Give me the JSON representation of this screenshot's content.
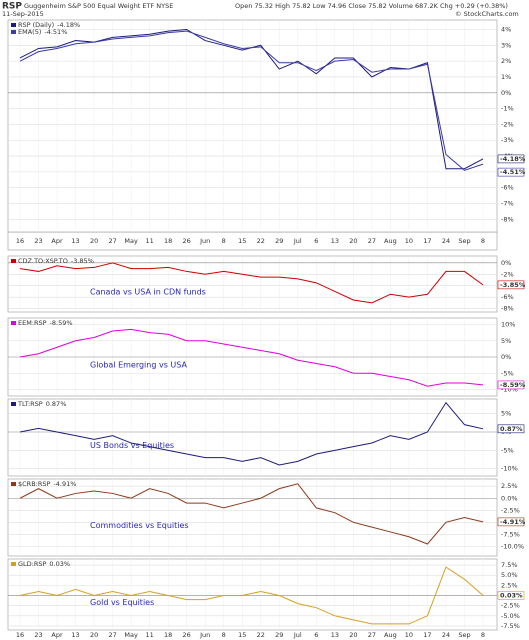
{
  "header": {
    "symbol": "RSP",
    "name": "Guggenheim S&P 500 Equal Weight ETF NYSE",
    "date": "11-Sep-2015",
    "quote": "Open 75.32 High 75.82 Low 74.96 Close 75.82 Volume 687.2K Chg +0.29 (+0.38%)",
    "copyright": "© StockCharts.com"
  },
  "chart_data": [
    {
      "type": "line",
      "categories": [
        "16",
        "23",
        "Apr",
        "13",
        "20",
        "27",
        "May",
        "11",
        "18",
        "26",
        "Jun",
        "8",
        "15",
        "22",
        "29",
        "Jul",
        "6",
        "13",
        "20",
        "27",
        "Aug",
        "10",
        "17",
        "24",
        "Sep",
        "8"
      ],
      "ylim": [
        -8.8,
        4.6
      ],
      "yticks": [
        {
          "value": 4,
          "label": "4%"
        },
        {
          "value": 3,
          "label": "3%"
        },
        {
          "value": 2,
          "label": "2%"
        },
        {
          "value": 1,
          "label": "1%"
        },
        {
          "value": 0,
          "label": "0%"
        },
        {
          "value": -1,
          "label": "-1%"
        },
        {
          "value": -2,
          "label": "-2%"
        },
        {
          "value": -3,
          "label": "-3%"
        },
        {
          "value": -4,
          "label": "-4%"
        },
        {
          "value": -5,
          "label": "-5%"
        },
        {
          "value": -6,
          "label": "-6%"
        },
        {
          "value": -7,
          "label": "-7%"
        },
        {
          "value": -8,
          "label": "-8%"
        }
      ],
      "grid": true,
      "series": [
        {
          "name": "RSP (Daily)",
          "last_label": "-4.18%",
          "color": "#1c1c7a",
          "values": [
            2.2,
            2.8,
            2.9,
            3.3,
            3.2,
            3.5,
            3.6,
            3.7,
            3.9,
            4.0,
            3.3,
            3.0,
            2.7,
            3.0,
            1.5,
            2.0,
            1.2,
            2.2,
            2.2,
            1.0,
            1.6,
            1.5,
            1.9,
            -4.8,
            -4.8,
            -4.18
          ]
        },
        {
          "name": "EMA(5)",
          "last_label": "-4.51%",
          "color": "#3a3aa8",
          "values": [
            2.0,
            2.6,
            2.8,
            3.1,
            3.2,
            3.4,
            3.5,
            3.6,
            3.8,
            3.9,
            3.5,
            3.1,
            2.8,
            2.9,
            1.9,
            1.9,
            1.4,
            2.0,
            2.1,
            1.3,
            1.5,
            1.5,
            1.8,
            -3.9,
            -4.9,
            -4.51
          ]
        }
      ]
    },
    {
      "type": "line",
      "annotation": "Canada vs USA in CDN funds",
      "ylim": [
        -8.6,
        1.2
      ],
      "yticks": [
        {
          "value": 0,
          "label": "0%"
        },
        {
          "value": -2,
          "label": "-2%"
        },
        {
          "value": -4,
          "label": "-4%"
        },
        {
          "value": -6,
          "label": "-6%"
        },
        {
          "value": -8,
          "label": "-8%"
        }
      ],
      "grid": true,
      "series": [
        {
          "name": "CDZ.TO:XSP.TO",
          "last_label": "-3.85%",
          "color": "#cc0000",
          "values": [
            -1,
            -1.5,
            -0.5,
            -1,
            -0.8,
            0,
            -1,
            -1,
            -0.8,
            -1.5,
            -2,
            -1.5,
            -2,
            -2.5,
            -2.5,
            -2.8,
            -3.5,
            -5,
            -6.5,
            -7,
            -5.5,
            -6,
            -5.5,
            -1.5,
            -1.5,
            -3.85
          ]
        }
      ]
    },
    {
      "type": "line",
      "annotation": "Global Emerging vs USA",
      "ylim": [
        -12,
        12
      ],
      "yticks": [
        {
          "value": 10,
          "label": "10%"
        },
        {
          "value": 5,
          "label": "5%"
        },
        {
          "value": 0,
          "label": "0%"
        },
        {
          "value": -5,
          "label": "-5%"
        },
        {
          "value": -10,
          "label": "-10%"
        }
      ],
      "grid": true,
      "series": [
        {
          "name": "EEM:RSP",
          "last_label": "-8.59%",
          "color": "#e000e0",
          "values": [
            0,
            1,
            3,
            5,
            6,
            8,
            8.5,
            7.5,
            7,
            5,
            5,
            4,
            3,
            2,
            1,
            -1,
            -2,
            -3,
            -5,
            -5,
            -6,
            -7,
            -9,
            -8,
            -8,
            -8.59
          ]
        }
      ]
    },
    {
      "type": "line",
      "annotation": "US Bonds vs Equities",
      "ylim": [
        -12,
        9
      ],
      "yticks": [
        {
          "value": 5,
          "label": "5%"
        },
        {
          "value": 0,
          "label": "0%"
        },
        {
          "value": -5,
          "label": "-5%"
        },
        {
          "value": -10,
          "label": "-10%"
        }
      ],
      "grid": true,
      "series": [
        {
          "name": "TLT:RSP",
          "last_label": "0.87%",
          "color": "#1c1c7a",
          "values": [
            0,
            1,
            0,
            -1,
            -2,
            -1,
            -3,
            -4,
            -5,
            -6,
            -7,
            -7,
            -8,
            -7,
            -9,
            -8,
            -6,
            -5,
            -4,
            -3,
            -1,
            -2,
            0,
            8,
            2,
            0.87
          ]
        }
      ]
    },
    {
      "type": "line",
      "annotation": "Commodities vs Equities",
      "ylim": [
        -12,
        4
      ],
      "yticks": [
        {
          "value": 2.5,
          "label": "2.5%"
        },
        {
          "value": 0,
          "label": "0.0%"
        },
        {
          "value": -2.5,
          "label": "-2.5%"
        },
        {
          "value": -5,
          "label": "-5.0%"
        },
        {
          "value": -7.5,
          "label": "-7.5%"
        },
        {
          "value": -10,
          "label": "-10.0%"
        }
      ],
      "grid": true,
      "series": [
        {
          "name": "$CRB:RSP",
          "last_label": "-4.91%",
          "color": "#8b3a1a",
          "values": [
            0,
            2,
            0,
            1,
            1.5,
            1,
            0,
            2,
            1,
            -1,
            -1,
            -2,
            -1,
            0,
            2,
            3,
            -2,
            -3,
            -5,
            -6,
            -7,
            -8,
            -9.5,
            -5,
            -4,
            -4.91
          ]
        }
      ]
    },
    {
      "type": "line",
      "annotation": "Gold vs Equities",
      "ylim": [
        -8.5,
        9
      ],
      "yticks": [
        {
          "value": 7.5,
          "label": "7.5%"
        },
        {
          "value": 5,
          "label": "5.0%"
        },
        {
          "value": 2.5,
          "label": "2.5%"
        },
        {
          "value": 0,
          "label": "0.0%"
        },
        {
          "value": -2.5,
          "label": "-2.5%"
        },
        {
          "value": -5,
          "label": "-5.0%"
        },
        {
          "value": -7.5,
          "label": "-7.5%"
        }
      ],
      "grid": true,
      "series": [
        {
          "name": "GLD:RSP",
          "last_label": "0.03%",
          "color": "#d4a020",
          "values": [
            0,
            1,
            0,
            1.5,
            0,
            1,
            0,
            1,
            0,
            -1,
            -1,
            0,
            0,
            1,
            0,
            -2,
            -3,
            -5,
            -6,
            -7,
            -7,
            -7,
            -5,
            7,
            4,
            0.03
          ]
        }
      ]
    }
  ]
}
